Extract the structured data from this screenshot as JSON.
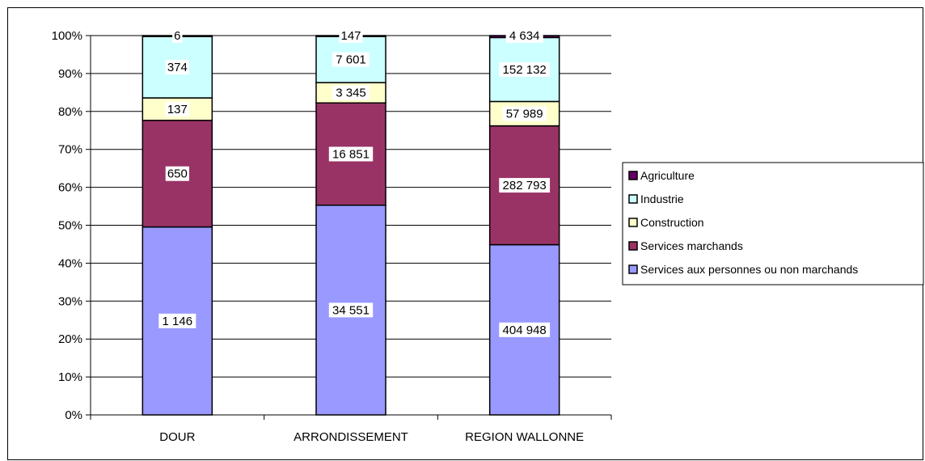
{
  "chart_data": {
    "type": "bar",
    "stacked": true,
    "normalized": true,
    "categories": [
      "DOUR",
      "ARRONDISSEMENT",
      "REGION WALLONNE"
    ],
    "series": [
      {
        "name": "Services aux personnes ou non marchands",
        "values": [
          1146,
          34551,
          404948
        ],
        "labels": [
          "1 146",
          "34 551",
          "404 948"
        ],
        "color": "#9999ff"
      },
      {
        "name": "Services marchands",
        "values": [
          650,
          16851,
          282793
        ],
        "labels": [
          "650",
          "16 851",
          "282 793"
        ],
        "color": "#993366"
      },
      {
        "name": "Construction",
        "values": [
          137,
          3345,
          57989
        ],
        "labels": [
          "137",
          "3 345",
          "57 989"
        ],
        "color": "#ffffcc"
      },
      {
        "name": "Industrie",
        "values": [
          374,
          7601,
          152132
        ],
        "labels": [
          "374",
          "7 601",
          "152 132"
        ],
        "color": "#ccffff"
      },
      {
        "name": "Agriculture",
        "values": [
          6,
          147,
          4634
        ],
        "labels": [
          "6",
          "147",
          "4 634"
        ],
        "color": "#660066"
      }
    ],
    "y_ticks": [
      "0%",
      "10%",
      "20%",
      "30%",
      "40%",
      "50%",
      "60%",
      "70%",
      "80%",
      "90%",
      "100%"
    ],
    "ylim": [
      0,
      100
    ],
    "grid": true,
    "legend": "right",
    "legend_order": [
      "Agriculture",
      "Industrie",
      "Construction",
      "Services marchands",
      "Services aux personnes ou non marchands"
    ]
  }
}
